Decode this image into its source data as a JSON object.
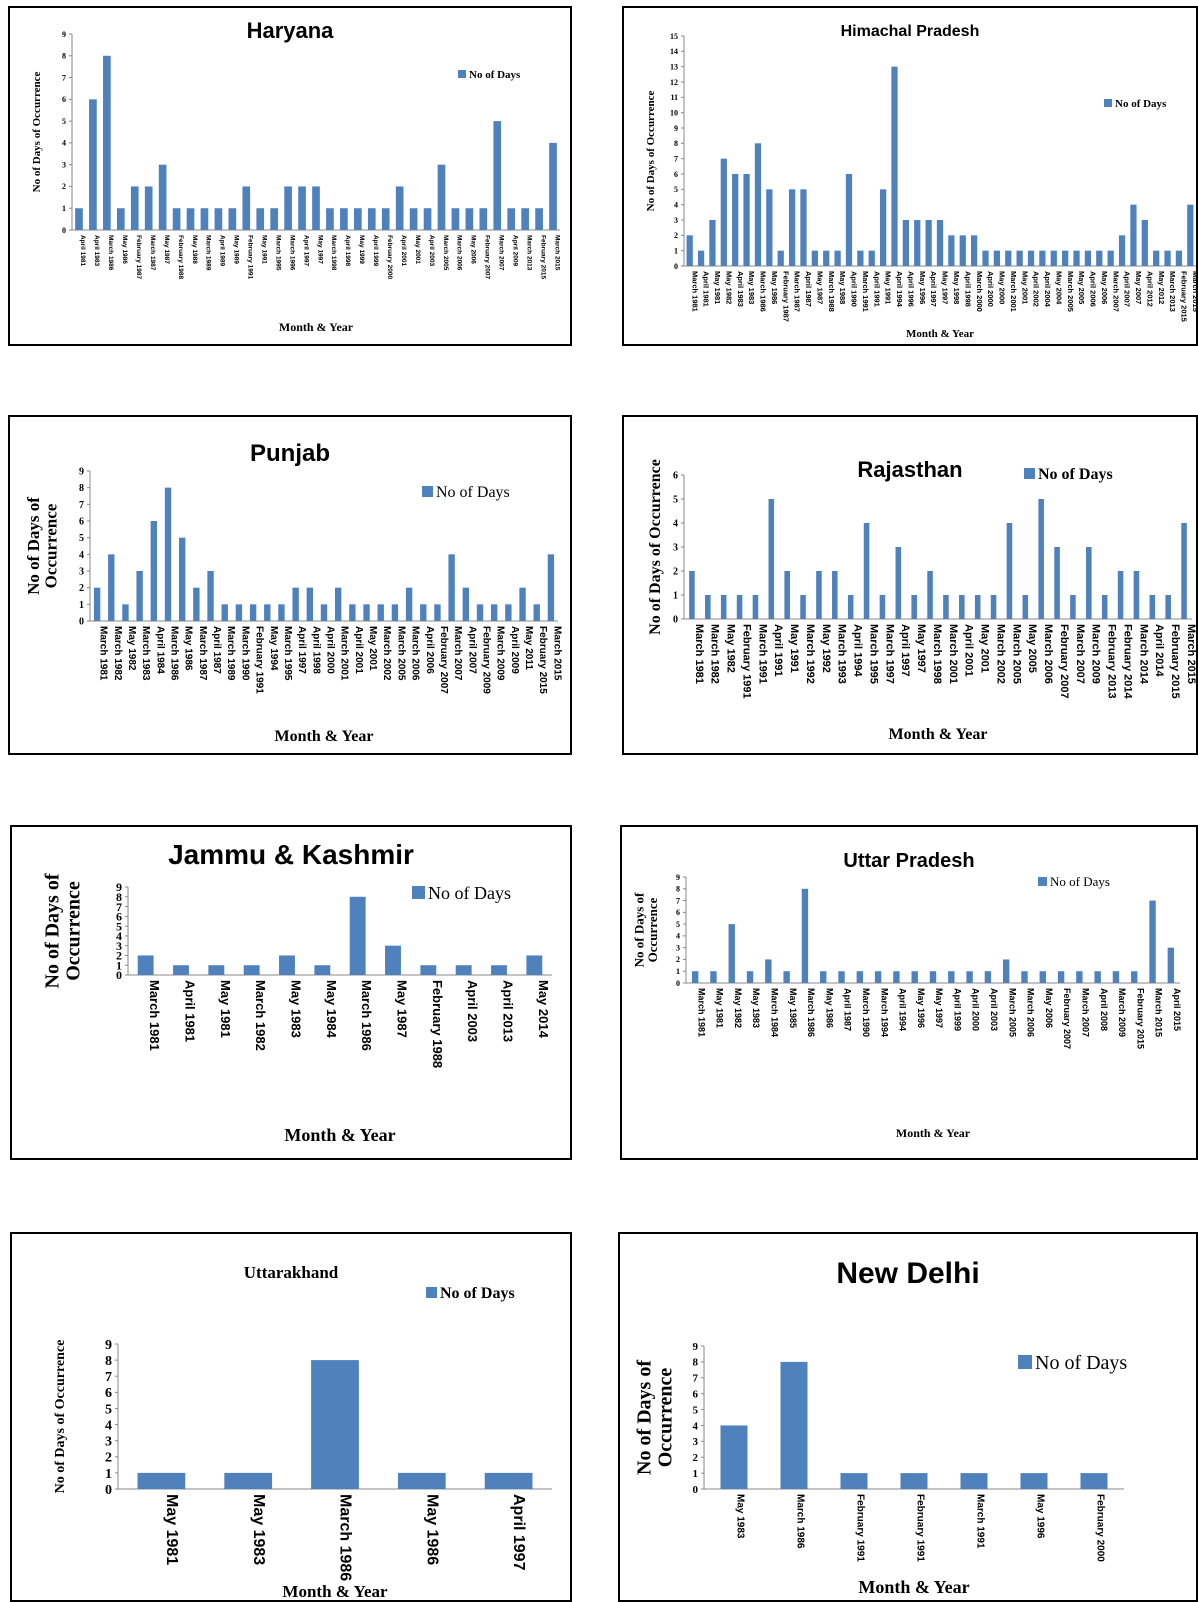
{
  "legend_label": "No of Days",
  "bar_color": "#4f81bd",
  "chart_data": [
    {
      "type": "bar",
      "title": "Haryana",
      "xlabel": "Month & Year",
      "ylabel": "No of Days of Occurrence",
      "ylim": [
        0,
        9
      ],
      "yticks": [
        0,
        1,
        2,
        3,
        4,
        5,
        6,
        7,
        8,
        9
      ],
      "legend": "top-right",
      "categories": [
        "April 1981",
        "April 1983",
        "March 1986",
        "May 1986",
        "February 1987",
        "March 1987",
        "May 1987",
        "February 1988",
        "May 1988",
        "March 1989",
        "April 1989",
        "May 1989",
        "February 1991",
        "May 1991",
        "March 1995",
        "March 1996",
        "April 1997",
        "May 1997",
        "March 1998",
        "April 1998",
        "May 1999",
        "April 1999",
        "February 2000",
        "April 2001",
        "May 2001",
        "April 2003",
        "March 2005",
        "March 2006",
        "May 2006",
        "February 2007",
        "March 2007",
        "April 2009",
        "March 2013",
        "February 2015",
        "March 2015"
      ],
      "values": [
        1,
        6,
        8,
        1,
        2,
        2,
        3,
        1,
        1,
        1,
        1,
        1,
        2,
        1,
        1,
        2,
        2,
        2,
        1,
        1,
        1,
        1,
        1,
        2,
        1,
        1,
        3,
        1,
        1,
        1,
        5,
        1,
        1,
        1,
        4
      ]
    },
    {
      "type": "bar",
      "title": "Himachal Pradesh",
      "xlabel": "Month & Year",
      "ylabel": "No of Days of Occurrence",
      "ylim": [
        0,
        15
      ],
      "yticks": [
        0,
        1,
        2,
        3,
        4,
        5,
        6,
        7,
        8,
        9,
        10,
        11,
        12,
        13,
        14,
        15
      ],
      "legend": "top-right",
      "categories": [
        "March 1981",
        "April 1981",
        "May 1981",
        "May 1982",
        "April 1983",
        "May 1983",
        "March 1986",
        "May 1986",
        "February 1987",
        "March 1987",
        "April 1987",
        "May 1987",
        "March 1988",
        "May 1988",
        "April 1990",
        "March 1991",
        "April 1991",
        "May 1991",
        "April 1994",
        "April 1996",
        "May 1996",
        "April 1997",
        "May 1997",
        "May 1998",
        "April 1998",
        "March 2000",
        "April 2000",
        "May 2000",
        "March 2001",
        "May 2001",
        "April 2002",
        "April 2004",
        "May 2004",
        "March 2005",
        "May 2005",
        "April 2006",
        "May 2006",
        "March 2007",
        "April 2007",
        "May 2007",
        "April 2012",
        "May 2012",
        "March 2013",
        "February 2015",
        "March 2015"
      ],
      "values": [
        2,
        1,
        3,
        7,
        6,
        6,
        8,
        5,
        1,
        5,
        5,
        1,
        1,
        1,
        6,
        1,
        1,
        5,
        13,
        3,
        3,
        3,
        3,
        2,
        2,
        2,
        1,
        1,
        1,
        1,
        1,
        1,
        1,
        1,
        1,
        1,
        1,
        1,
        2,
        4,
        3,
        1,
        1,
        1,
        4
      ]
    },
    {
      "type": "bar",
      "title": "Punjab",
      "xlabel": "Month & Year",
      "ylabel": "No of Days of Occurrence",
      "ylim": [
        0,
        9
      ],
      "yticks": [
        0,
        1,
        2,
        3,
        4,
        5,
        6,
        7,
        8,
        9
      ],
      "legend": "top-right",
      "categories": [
        "March 1981",
        "March 1982",
        "May 1982",
        "March 1983",
        "April 1984",
        "March 1986",
        "May 1986",
        "March 1987",
        "April 1987",
        "March 1989",
        "March 1990",
        "February 1991",
        "May 1994",
        "March 1995",
        "April 1997",
        "April 1998",
        "April 2000",
        "March 2001",
        "April 2001",
        "May 2001",
        "March 2002",
        "March 2005",
        "March 2006",
        "April 2006",
        "February 2007",
        "March 2007",
        "April 2007",
        "February 2009",
        "March 2009",
        "April 2009",
        "May 2011",
        "February 2015",
        "March 2015"
      ],
      "values": [
        2,
        4,
        1,
        3,
        6,
        8,
        5,
        2,
        3,
        1,
        1,
        1,
        1,
        1,
        2,
        2,
        1,
        2,
        1,
        1,
        1,
        1,
        2,
        1,
        1,
        4,
        2,
        1,
        1,
        1,
        2,
        1,
        4
      ]
    },
    {
      "type": "bar",
      "title": "Rajasthan",
      "xlabel": "Month & Year",
      "ylabel": "No of Days of Occurrence",
      "ylim": [
        0,
        6
      ],
      "yticks": [
        0,
        1,
        2,
        3,
        4,
        5,
        6
      ],
      "legend": "top-right",
      "categories": [
        "March 1981",
        "March 1982",
        "May 1982",
        "February 1991",
        "March 1991",
        "April 1991",
        "May 1991",
        "March 1992",
        "May 1992",
        "March 1993",
        "April 1994",
        "March 1995",
        "March 1997",
        "April 1997",
        "May 1997",
        "March 1998",
        "March 2001",
        "April 2001",
        "May 2001",
        "March 2002",
        "March 2005",
        "May 2005",
        "March 2006",
        "February 2007",
        "March 2007",
        "March 2009",
        "February 2013",
        "February 2014",
        "March 2014",
        "April 2014",
        "February 2015",
        "March 2015"
      ],
      "values": [
        2,
        1,
        1,
        1,
        1,
        5,
        2,
        1,
        2,
        2,
        1,
        4,
        1,
        3,
        1,
        2,
        1,
        1,
        1,
        1,
        4,
        1,
        5,
        3,
        1,
        3,
        1,
        2,
        2,
        1,
        1,
        4
      ]
    },
    {
      "type": "bar",
      "title": "Jammu & Kashmir",
      "xlabel": "Month & Year",
      "ylabel": "No of Days of Occurrence",
      "ylim": [
        0,
        9
      ],
      "yticks": [
        0,
        1,
        2,
        3,
        4,
        5,
        6,
        7,
        8,
        9
      ],
      "legend": "top-right",
      "categories": [
        "March 1981",
        "April 1981",
        "May 1981",
        "March 1982",
        "May 1983",
        "May 1984",
        "March 1986",
        "May 1987",
        "February 1988",
        "April 2003",
        "April 2013",
        "May 2014"
      ],
      "values": [
        2,
        1,
        1,
        1,
        2,
        1,
        8,
        3,
        1,
        1,
        1,
        2
      ]
    },
    {
      "type": "bar",
      "title": "Uttar Pradesh",
      "xlabel": "Month & Year",
      "ylabel": "No of Days of Occurrence",
      "ylim": [
        0,
        9
      ],
      "yticks": [
        0,
        1,
        2,
        3,
        4,
        5,
        6,
        7,
        8,
        9
      ],
      "legend": "top-right",
      "categories": [
        "March 1981",
        "May 1981",
        "May 1982",
        "May 1983",
        "March 1984",
        "May 1985",
        "March 1986",
        "May 1986",
        "April 1987",
        "March 1990",
        "March 1994",
        "April 1994",
        "May 1996",
        "May 1997",
        "April 1999",
        "April 2000",
        "April 2003",
        "March 2005",
        "March 2006",
        "May 2006",
        "February 2007",
        "March 2007",
        "April 2008",
        "March 2009",
        "February 2015",
        "March 2015",
        "April 2015"
      ],
      "values": [
        1,
        1,
        5,
        1,
        2,
        1,
        8,
        1,
        1,
        1,
        1,
        1,
        1,
        1,
        1,
        1,
        1,
        2,
        1,
        1,
        1,
        1,
        1,
        1,
        1,
        7,
        3
      ]
    },
    {
      "type": "bar",
      "title": "Uttarakhand",
      "xlabel": "Month & Year",
      "ylabel": "No of Days of Occurrence",
      "ylim": [
        0,
        9
      ],
      "yticks": [
        0,
        1,
        2,
        3,
        4,
        5,
        6,
        7,
        8,
        9
      ],
      "legend": "top-right",
      "categories": [
        "May 1981",
        "May 1983",
        "March 1986",
        "May 1986",
        "April 1997"
      ],
      "values": [
        1,
        1,
        8,
        1,
        1
      ]
    },
    {
      "type": "bar",
      "title": "New Delhi",
      "xlabel": "Month & Year",
      "ylabel": "No of Days of Occurrence",
      "ylim": [
        0,
        9
      ],
      "yticks": [
        0,
        1,
        2,
        3,
        4,
        5,
        6,
        7,
        8,
        9
      ],
      "legend": "right",
      "categories": [
        "May 1983",
        "March 1986",
        "February 1991",
        "February 1991",
        "March 1991",
        "May 1996",
        "February 2000"
      ],
      "values": [
        4,
        8,
        1,
        1,
        1,
        1,
        1
      ]
    }
  ]
}
